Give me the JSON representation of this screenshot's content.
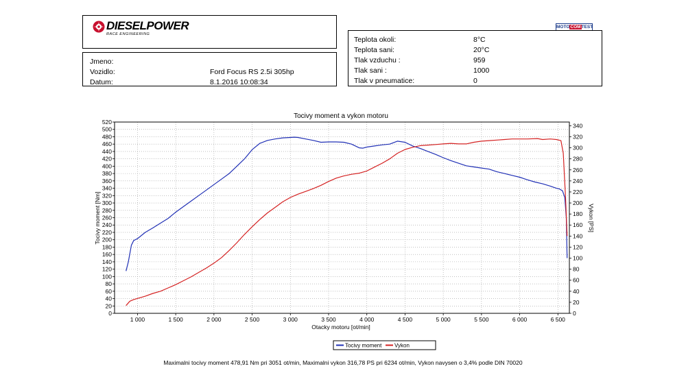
{
  "header": {
    "brand_name": "DIESELPOWER",
    "brand_sub": "RACE ENGINEERING",
    "badge": {
      "left": "MOTO",
      "middle": "COM",
      "right": "TEST"
    }
  },
  "vehicle_info": {
    "rows": [
      {
        "label": "Jmeno:",
        "value": ""
      },
      {
        "label": "Vozidlo:",
        "value": "Ford Focus RS 2.5i 305hp"
      },
      {
        "label": "Datum:",
        "value": "8.1.2016 10:08:34"
      }
    ]
  },
  "conditions": {
    "rows": [
      {
        "label": "Teplota okoli:",
        "value": "8°C"
      },
      {
        "label": "Teplota sani:",
        "value": "20°C"
      },
      {
        "label": "Tlak vzduchu :",
        "value": "959"
      },
      {
        "label": "Tlak sani :",
        "value": "1000"
      },
      {
        "label": "Tlak v pneumatice:",
        "value": "0"
      }
    ]
  },
  "footer_text": "Maximalni tocivy moment 478,91 Nm pri 3051 ot/min,  Maximalni vykon 316,78 PS pri 6234 ot/min,  Vykon navysen o 3,4% podle DIN 70020",
  "chart_data": {
    "type": "line",
    "title": "Tocivy moment a vykon motoru",
    "xlabel": "Otacky motoru [ot/min]",
    "ylabel": "Tocivy moment [Nm]",
    "y2label": "Vykon [PS]",
    "xlim": [
      700,
      6650
    ],
    "ylim": [
      0,
      520
    ],
    "y2lim": [
      0,
      346.7
    ],
    "x_ticks": [
      1000,
      1500,
      2000,
      2500,
      3000,
      3500,
      4000,
      4500,
      5000,
      5500,
      6000,
      6500
    ],
    "x_tick_labels": [
      "1 000",
      "1 500",
      "2 000",
      "2 500",
      "3 000",
      "3 500",
      "4 000",
      "4 500",
      "5 000",
      "5 500",
      "6 000",
      "6 500"
    ],
    "y_ticks": [
      0,
      20,
      40,
      60,
      80,
      100,
      120,
      140,
      160,
      180,
      200,
      220,
      240,
      260,
      280,
      300,
      320,
      340,
      360,
      380,
      400,
      420,
      440,
      460,
      480,
      500,
      520
    ],
    "y2_ticks": [
      0,
      20,
      40,
      60,
      80,
      100,
      120,
      140,
      160,
      180,
      200,
      220,
      240,
      260,
      280,
      300,
      320,
      340
    ],
    "grid": true,
    "legend_position": "bottom-center",
    "series": [
      {
        "name": "Tocivy moment",
        "color": "#1f2fb5",
        "axis": "left",
        "x": [
          850,
          880,
          920,
          950,
          1000,
          1100,
          1200,
          1300,
          1400,
          1500,
          1600,
          1700,
          1800,
          1900,
          2000,
          2100,
          2200,
          2300,
          2400,
          2500,
          2600,
          2700,
          2800,
          2900,
          3000,
          3051,
          3100,
          3200,
          3300,
          3400,
          3500,
          3600,
          3700,
          3800,
          3900,
          3950,
          4000,
          4100,
          4200,
          4300,
          4400,
          4500,
          4600,
          4700,
          4800,
          4900,
          5000,
          5100,
          5200,
          5300,
          5400,
          5500,
          5600,
          5700,
          5800,
          5900,
          6000,
          6100,
          6200,
          6300,
          6400,
          6480,
          6520,
          6560,
          6590,
          6610,
          6620
        ],
        "y": [
          115,
          140,
          185,
          198,
          203,
          220,
          232,
          245,
          258,
          275,
          290,
          305,
          320,
          335,
          350,
          365,
          380,
          400,
          420,
          445,
          462,
          470,
          474,
          477,
          478,
          478.9,
          478,
          474,
          470,
          465,
          466,
          466,
          465,
          460,
          450,
          449,
          452,
          455,
          458,
          460,
          468,
          465,
          455,
          448,
          440,
          432,
          423,
          415,
          408,
          401,
          398,
          395,
          392,
          385,
          380,
          375,
          370,
          363,
          357,
          352,
          346,
          340,
          338,
          333,
          315,
          260,
          150
        ]
      },
      {
        "name": "Vykon",
        "color": "#d42020",
        "axis": "right",
        "x": [
          850,
          900,
          950,
          1000,
          1100,
          1200,
          1300,
          1400,
          1500,
          1600,
          1700,
          1800,
          1900,
          2000,
          2100,
          2200,
          2300,
          2400,
          2500,
          2600,
          2700,
          2800,
          2900,
          3000,
          3100,
          3200,
          3300,
          3400,
          3500,
          3600,
          3700,
          3800,
          3900,
          4000,
          4100,
          4200,
          4300,
          4400,
          4500,
          4600,
          4700,
          4800,
          4900,
          5000,
          5100,
          5200,
          5300,
          5400,
          5500,
          5600,
          5700,
          5800,
          5900,
          6000,
          6100,
          6234,
          6300,
          6400,
          6480,
          6540,
          6570,
          6600,
          6620
        ],
        "y": [
          14,
          22,
          25,
          27,
          31,
          36,
          40,
          46,
          52,
          59,
          66,
          74,
          82,
          91,
          101,
          114,
          128,
          143,
          157,
          170,
          182,
          192,
          202,
          210,
          216,
          221,
          226,
          232,
          239,
          245,
          249,
          252,
          254,
          258,
          265,
          272,
          280,
          290,
          297,
          301,
          304,
          305,
          306,
          307,
          308,
          307,
          307,
          310,
          312,
          313,
          314,
          315,
          316,
          316,
          316,
          316.8,
          315,
          316,
          315,
          313,
          290,
          210,
          140
        ]
      }
    ]
  }
}
